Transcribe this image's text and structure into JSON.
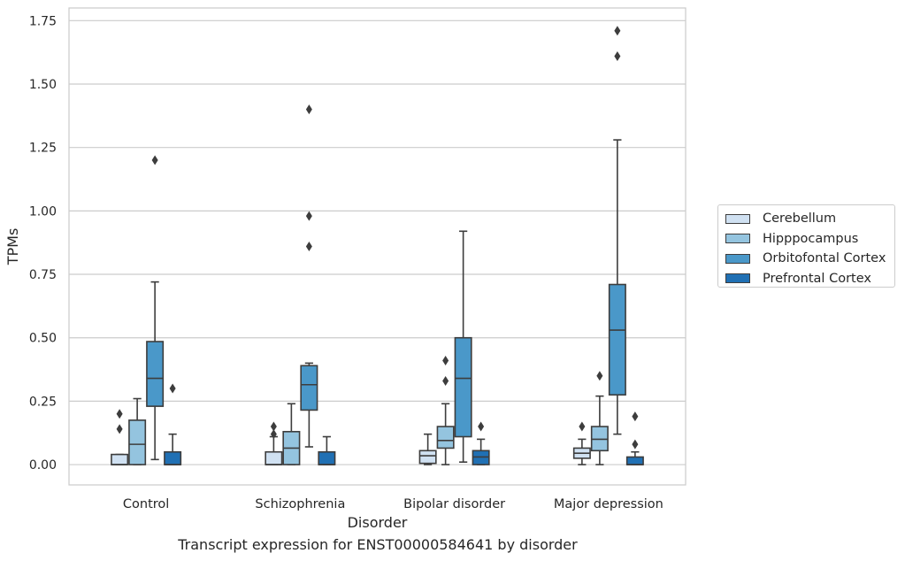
{
  "caption": "Transcript expression for ENST00000584641 by disorder",
  "chart_data": {
    "type": "boxplot",
    "xlabel": "Disorder",
    "ylabel": "TPMs",
    "ylim": [
      -0.08,
      1.8
    ],
    "yticks": [
      0.0,
      0.25,
      0.5,
      0.75,
      1.0,
      1.25,
      1.5,
      1.75
    ],
    "ytick_labels": [
      "0.00",
      "0.25",
      "0.50",
      "0.75",
      "1.00",
      "1.25",
      "1.50",
      "1.75"
    ],
    "grid": true,
    "legend_position": "right",
    "categories": [
      "Control",
      "Schizophrenia",
      "Bipolar disorder",
      "Major depression"
    ],
    "series": [
      {
        "name": "Cerebellum",
        "color": "#d0e1f2",
        "boxes": [
          {
            "q1": 0.0,
            "median": 0.0,
            "q3": 0.04,
            "whisker_low": 0.0,
            "whisker_high": 0.04,
            "outliers": [
              0.14,
              0.2
            ]
          },
          {
            "q1": 0.0,
            "median": 0.0,
            "q3": 0.05,
            "whisker_low": 0.0,
            "whisker_high": 0.11,
            "outliers": [
              0.12,
              0.15
            ]
          },
          {
            "q1": 0.005,
            "median": 0.035,
            "q3": 0.055,
            "whisker_low": 0.0,
            "whisker_high": 0.12,
            "outliers": []
          },
          {
            "q1": 0.025,
            "median": 0.045,
            "q3": 0.065,
            "whisker_low": 0.0,
            "whisker_high": 0.1,
            "outliers": [
              0.15
            ]
          }
        ]
      },
      {
        "name": "Hipppocampus",
        "color": "#94c4df",
        "boxes": [
          {
            "q1": 0.0,
            "median": 0.08,
            "q3": 0.175,
            "whisker_low": 0.0,
            "whisker_high": 0.26,
            "outliers": []
          },
          {
            "q1": 0.0,
            "median": 0.065,
            "q3": 0.13,
            "whisker_low": 0.0,
            "whisker_high": 0.24,
            "outliers": []
          },
          {
            "q1": 0.065,
            "median": 0.095,
            "q3": 0.15,
            "whisker_low": 0.0,
            "whisker_high": 0.24,
            "outliers": [
              0.33,
              0.41
            ]
          },
          {
            "q1": 0.055,
            "median": 0.1,
            "q3": 0.15,
            "whisker_low": 0.0,
            "whisker_high": 0.27,
            "outliers": [
              0.35
            ]
          }
        ]
      },
      {
        "name": "Orbitofontal Cortex",
        "color": "#4a98c9",
        "boxes": [
          {
            "q1": 0.23,
            "median": 0.34,
            "q3": 0.485,
            "whisker_low": 0.02,
            "whisker_high": 0.72,
            "outliers": [
              1.2
            ]
          },
          {
            "q1": 0.215,
            "median": 0.315,
            "q3": 0.39,
            "whisker_low": 0.07,
            "whisker_high": 0.4,
            "outliers": [
              0.86,
              0.98,
              1.4
            ]
          },
          {
            "q1": 0.11,
            "median": 0.34,
            "q3": 0.5,
            "whisker_low": 0.01,
            "whisker_high": 0.92,
            "outliers": []
          },
          {
            "q1": 0.275,
            "median": 0.53,
            "q3": 0.71,
            "whisker_low": 0.12,
            "whisker_high": 1.28,
            "outliers": [
              1.61,
              1.71
            ]
          }
        ]
      },
      {
        "name": "Prefrontal Cortex",
        "color": "#2070b4",
        "boxes": [
          {
            "q1": 0.0,
            "median": 0.0,
            "q3": 0.05,
            "whisker_low": 0.0,
            "whisker_high": 0.12,
            "outliers": [
              0.3
            ]
          },
          {
            "q1": 0.0,
            "median": 0.0,
            "q3": 0.05,
            "whisker_low": 0.0,
            "whisker_high": 0.11,
            "outliers": []
          },
          {
            "q1": 0.0,
            "median": 0.03,
            "q3": 0.055,
            "whisker_low": 0.0,
            "whisker_high": 0.1,
            "outliers": [
              0.15
            ]
          },
          {
            "q1": 0.0,
            "median": 0.0,
            "q3": 0.03,
            "whisker_low": 0.0,
            "whisker_high": 0.05,
            "outliers": [
              0.08,
              0.19
            ]
          }
        ]
      }
    ]
  }
}
